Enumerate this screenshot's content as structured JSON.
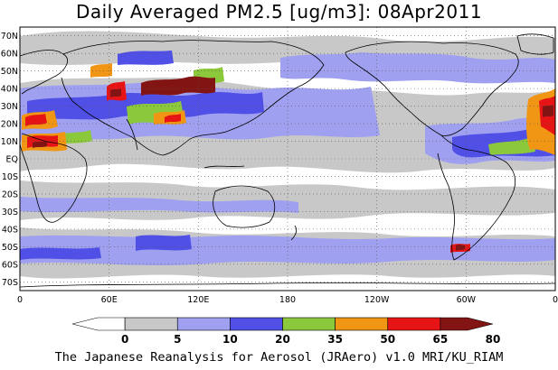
{
  "title": "Daily Averaged PM2.5 [ug/m3]: 08Apr2011",
  "footer": "The Japanese Reanalysis for Aerosol (JRAero) v1.0 MRI/KU_RIAM",
  "map": {
    "lat_ticks": [
      {
        "value": 70,
        "label": "70N"
      },
      {
        "value": 60,
        "label": "60N"
      },
      {
        "value": 50,
        "label": "50N"
      },
      {
        "value": 40,
        "label": "40N"
      },
      {
        "value": 30,
        "label": "30N"
      },
      {
        "value": 20,
        "label": "20N"
      },
      {
        "value": 10,
        "label": "10N"
      },
      {
        "value": 0,
        "label": "EQ"
      },
      {
        "value": -10,
        "label": "10S"
      },
      {
        "value": -20,
        "label": "20S"
      },
      {
        "value": -30,
        "label": "30S"
      },
      {
        "value": -40,
        "label": "40S"
      },
      {
        "value": -50,
        "label": "50S"
      },
      {
        "value": -60,
        "label": "60S"
      },
      {
        "value": -70,
        "label": "70S"
      }
    ],
    "lon_ticks": [
      {
        "value": 0,
        "label": "0"
      },
      {
        "value": 60,
        "label": "60E"
      },
      {
        "value": 120,
        "label": "120E"
      },
      {
        "value": 180,
        "label": "180"
      },
      {
        "value": 240,
        "label": "120W"
      },
      {
        "value": 300,
        "label": "60W"
      },
      {
        "value": 360,
        "label": "0"
      }
    ],
    "lat_range": [
      -75,
      75
    ],
    "lon_range": [
      0,
      360
    ],
    "grid": "dotted"
  },
  "legend": {
    "levels": [
      "0",
      "5",
      "10",
      "20",
      "35",
      "50",
      "65",
      "80"
    ],
    "colors": [
      "#ffffff",
      "#c8c8c8",
      "#a0a0f0",
      "#5050e6",
      "#8cc83c",
      "#f09614",
      "#e61414",
      "#821414"
    ]
  }
}
